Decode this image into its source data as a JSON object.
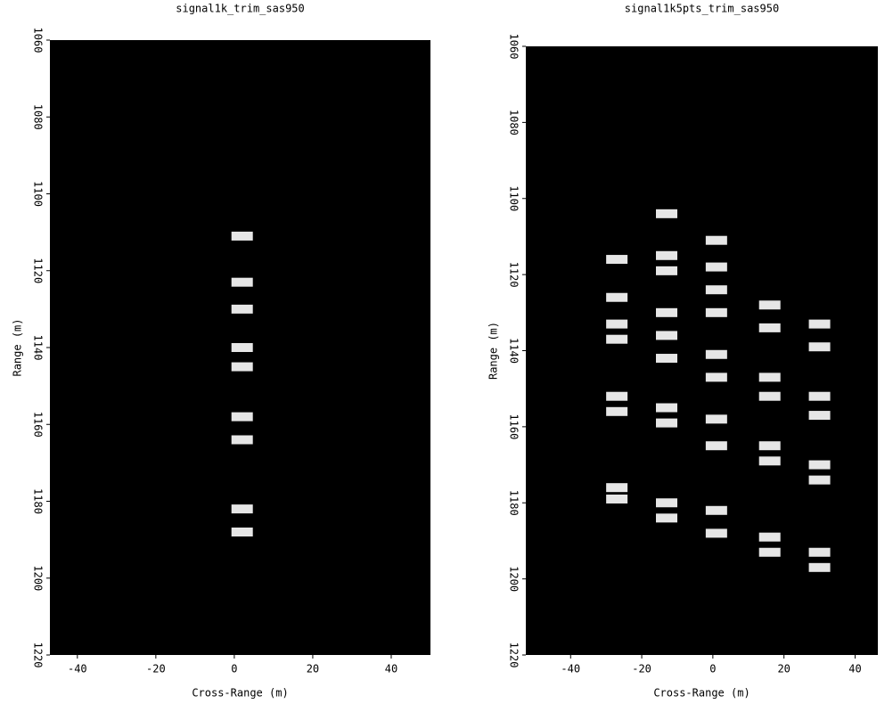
{
  "chart_data": [
    {
      "type": "scatter",
      "title": "signal1k_trim_sas950",
      "xlabel": "Cross-Range (m)",
      "ylabel": "Range (m)",
      "x": [
        2,
        2,
        2,
        2,
        2,
        2,
        2,
        2,
        2
      ],
      "y": [
        1111,
        1123,
        1130,
        1140,
        1145,
        1158,
        1164,
        1182,
        1188
      ],
      "xlim": [
        -47,
        50
      ],
      "ylim": [
        1060,
        1220
      ],
      "y_inverted": true,
      "xticks": [
        -40,
        -20,
        0,
        20,
        40
      ],
      "yticks": [
        1060,
        1080,
        1100,
        1120,
        1140,
        1160,
        1180,
        1200,
        1220
      ],
      "color": "#ffffff",
      "facecolor": "#000000"
    },
    {
      "type": "scatter",
      "title": "signal1k5pts_trim_sas950",
      "xlabel": "Cross-Range (m)",
      "ylabel": "Range (m)",
      "x": [
        -27,
        -27,
        -27,
        -27,
        -27,
        -27,
        -27,
        -27,
        -13,
        -13,
        -13,
        -13,
        -13,
        -13,
        -13,
        -13,
        -13,
        -13,
        1,
        1,
        1,
        1,
        1,
        1,
        1,
        1,
        1,
        1,
        16,
        16,
        16,
        16,
        16,
        16,
        16,
        16,
        30,
        30,
        30,
        30,
        30,
        30,
        30,
        30
      ],
      "y": [
        1116,
        1126,
        1133,
        1137,
        1152,
        1156,
        1176,
        1179,
        1104,
        1115,
        1119,
        1130,
        1136,
        1142,
        1155,
        1159,
        1180,
        1184,
        1111,
        1118,
        1124,
        1130,
        1141,
        1147,
        1158,
        1165,
        1182,
        1188,
        1128,
        1134,
        1147,
        1152,
        1165,
        1169,
        1189,
        1193,
        1133,
        1139,
        1152,
        1157,
        1170,
        1174,
        1193,
        1197
      ],
      "xlim": [
        -52.6,
        46.4
      ],
      "ylim": [
        1060,
        1220
      ],
      "y_inverted": true,
      "xticks": [
        -40,
        -20,
        0,
        20,
        40
      ],
      "yticks": [
        1060,
        1080,
        1100,
        1120,
        1140,
        1160,
        1180,
        1200,
        1220
      ],
      "color": "#ffffff",
      "facecolor": "#000000"
    }
  ]
}
